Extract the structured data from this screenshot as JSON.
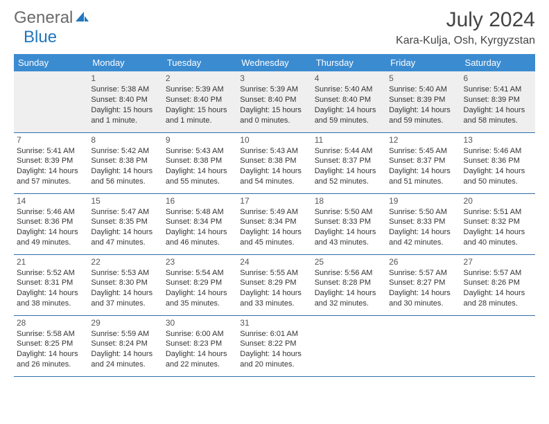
{
  "brand": {
    "part1": "General",
    "part2": "Blue"
  },
  "colors": {
    "header_bg": "#3b8bd0",
    "header_text": "#ffffff",
    "row_divider": "#2f6ea8",
    "first_row_bg": "#efefef",
    "page_bg": "#ffffff",
    "text": "#333333",
    "logo_gray": "#6a6a6a",
    "logo_blue": "#2176bd"
  },
  "typography": {
    "month_title_size": 30,
    "location_size": 16,
    "weekday_size": 13,
    "daynum_size": 12,
    "cell_size": 11
  },
  "title": {
    "month": "July 2024",
    "location": "Kara-Kulja, Osh, Kyrgyzstan"
  },
  "weekdays": [
    "Sunday",
    "Monday",
    "Tuesday",
    "Wednesday",
    "Thursday",
    "Friday",
    "Saturday"
  ],
  "calendar": {
    "type": "table",
    "columns": 7,
    "weeks": [
      [
        null,
        {
          "n": "1",
          "sr": "5:38 AM",
          "ss": "8:40 PM",
          "dl1": "15 hours",
          "dl2": "and 1 minute."
        },
        {
          "n": "2",
          "sr": "5:39 AM",
          "ss": "8:40 PM",
          "dl1": "15 hours",
          "dl2": "and 1 minute."
        },
        {
          "n": "3",
          "sr": "5:39 AM",
          "ss": "8:40 PM",
          "dl1": "15 hours",
          "dl2": "and 0 minutes."
        },
        {
          "n": "4",
          "sr": "5:40 AM",
          "ss": "8:40 PM",
          "dl1": "14 hours",
          "dl2": "and 59 minutes."
        },
        {
          "n": "5",
          "sr": "5:40 AM",
          "ss": "8:39 PM",
          "dl1": "14 hours",
          "dl2": "and 59 minutes."
        },
        {
          "n": "6",
          "sr": "5:41 AM",
          "ss": "8:39 PM",
          "dl1": "14 hours",
          "dl2": "and 58 minutes."
        }
      ],
      [
        {
          "n": "7",
          "sr": "5:41 AM",
          "ss": "8:39 PM",
          "dl1": "14 hours",
          "dl2": "and 57 minutes."
        },
        {
          "n": "8",
          "sr": "5:42 AM",
          "ss": "8:38 PM",
          "dl1": "14 hours",
          "dl2": "and 56 minutes."
        },
        {
          "n": "9",
          "sr": "5:43 AM",
          "ss": "8:38 PM",
          "dl1": "14 hours",
          "dl2": "and 55 minutes."
        },
        {
          "n": "10",
          "sr": "5:43 AM",
          "ss": "8:38 PM",
          "dl1": "14 hours",
          "dl2": "and 54 minutes."
        },
        {
          "n": "11",
          "sr": "5:44 AM",
          "ss": "8:37 PM",
          "dl1": "14 hours",
          "dl2": "and 52 minutes."
        },
        {
          "n": "12",
          "sr": "5:45 AM",
          "ss": "8:37 PM",
          "dl1": "14 hours",
          "dl2": "and 51 minutes."
        },
        {
          "n": "13",
          "sr": "5:46 AM",
          "ss": "8:36 PM",
          "dl1": "14 hours",
          "dl2": "and 50 minutes."
        }
      ],
      [
        {
          "n": "14",
          "sr": "5:46 AM",
          "ss": "8:36 PM",
          "dl1": "14 hours",
          "dl2": "and 49 minutes."
        },
        {
          "n": "15",
          "sr": "5:47 AM",
          "ss": "8:35 PM",
          "dl1": "14 hours",
          "dl2": "and 47 minutes."
        },
        {
          "n": "16",
          "sr": "5:48 AM",
          "ss": "8:34 PM",
          "dl1": "14 hours",
          "dl2": "and 46 minutes."
        },
        {
          "n": "17",
          "sr": "5:49 AM",
          "ss": "8:34 PM",
          "dl1": "14 hours",
          "dl2": "and 45 minutes."
        },
        {
          "n": "18",
          "sr": "5:50 AM",
          "ss": "8:33 PM",
          "dl1": "14 hours",
          "dl2": "and 43 minutes."
        },
        {
          "n": "19",
          "sr": "5:50 AM",
          "ss": "8:33 PM",
          "dl1": "14 hours",
          "dl2": "and 42 minutes."
        },
        {
          "n": "20",
          "sr": "5:51 AM",
          "ss": "8:32 PM",
          "dl1": "14 hours",
          "dl2": "and 40 minutes."
        }
      ],
      [
        {
          "n": "21",
          "sr": "5:52 AM",
          "ss": "8:31 PM",
          "dl1": "14 hours",
          "dl2": "and 38 minutes."
        },
        {
          "n": "22",
          "sr": "5:53 AM",
          "ss": "8:30 PM",
          "dl1": "14 hours",
          "dl2": "and 37 minutes."
        },
        {
          "n": "23",
          "sr": "5:54 AM",
          "ss": "8:29 PM",
          "dl1": "14 hours",
          "dl2": "and 35 minutes."
        },
        {
          "n": "24",
          "sr": "5:55 AM",
          "ss": "8:29 PM",
          "dl1": "14 hours",
          "dl2": "and 33 minutes."
        },
        {
          "n": "25",
          "sr": "5:56 AM",
          "ss": "8:28 PM",
          "dl1": "14 hours",
          "dl2": "and 32 minutes."
        },
        {
          "n": "26",
          "sr": "5:57 AM",
          "ss": "8:27 PM",
          "dl1": "14 hours",
          "dl2": "and 30 minutes."
        },
        {
          "n": "27",
          "sr": "5:57 AM",
          "ss": "8:26 PM",
          "dl1": "14 hours",
          "dl2": "and 28 minutes."
        }
      ],
      [
        {
          "n": "28",
          "sr": "5:58 AM",
          "ss": "8:25 PM",
          "dl1": "14 hours",
          "dl2": "and 26 minutes."
        },
        {
          "n": "29",
          "sr": "5:59 AM",
          "ss": "8:24 PM",
          "dl1": "14 hours",
          "dl2": "and 24 minutes."
        },
        {
          "n": "30",
          "sr": "6:00 AM",
          "ss": "8:23 PM",
          "dl1": "14 hours",
          "dl2": "and 22 minutes."
        },
        {
          "n": "31",
          "sr": "6:01 AM",
          "ss": "8:22 PM",
          "dl1": "14 hours",
          "dl2": "and 20 minutes."
        },
        null,
        null,
        null
      ]
    ]
  },
  "labels": {
    "sunrise": "Sunrise: ",
    "sunset": "Sunset: ",
    "daylight": "Daylight: "
  }
}
